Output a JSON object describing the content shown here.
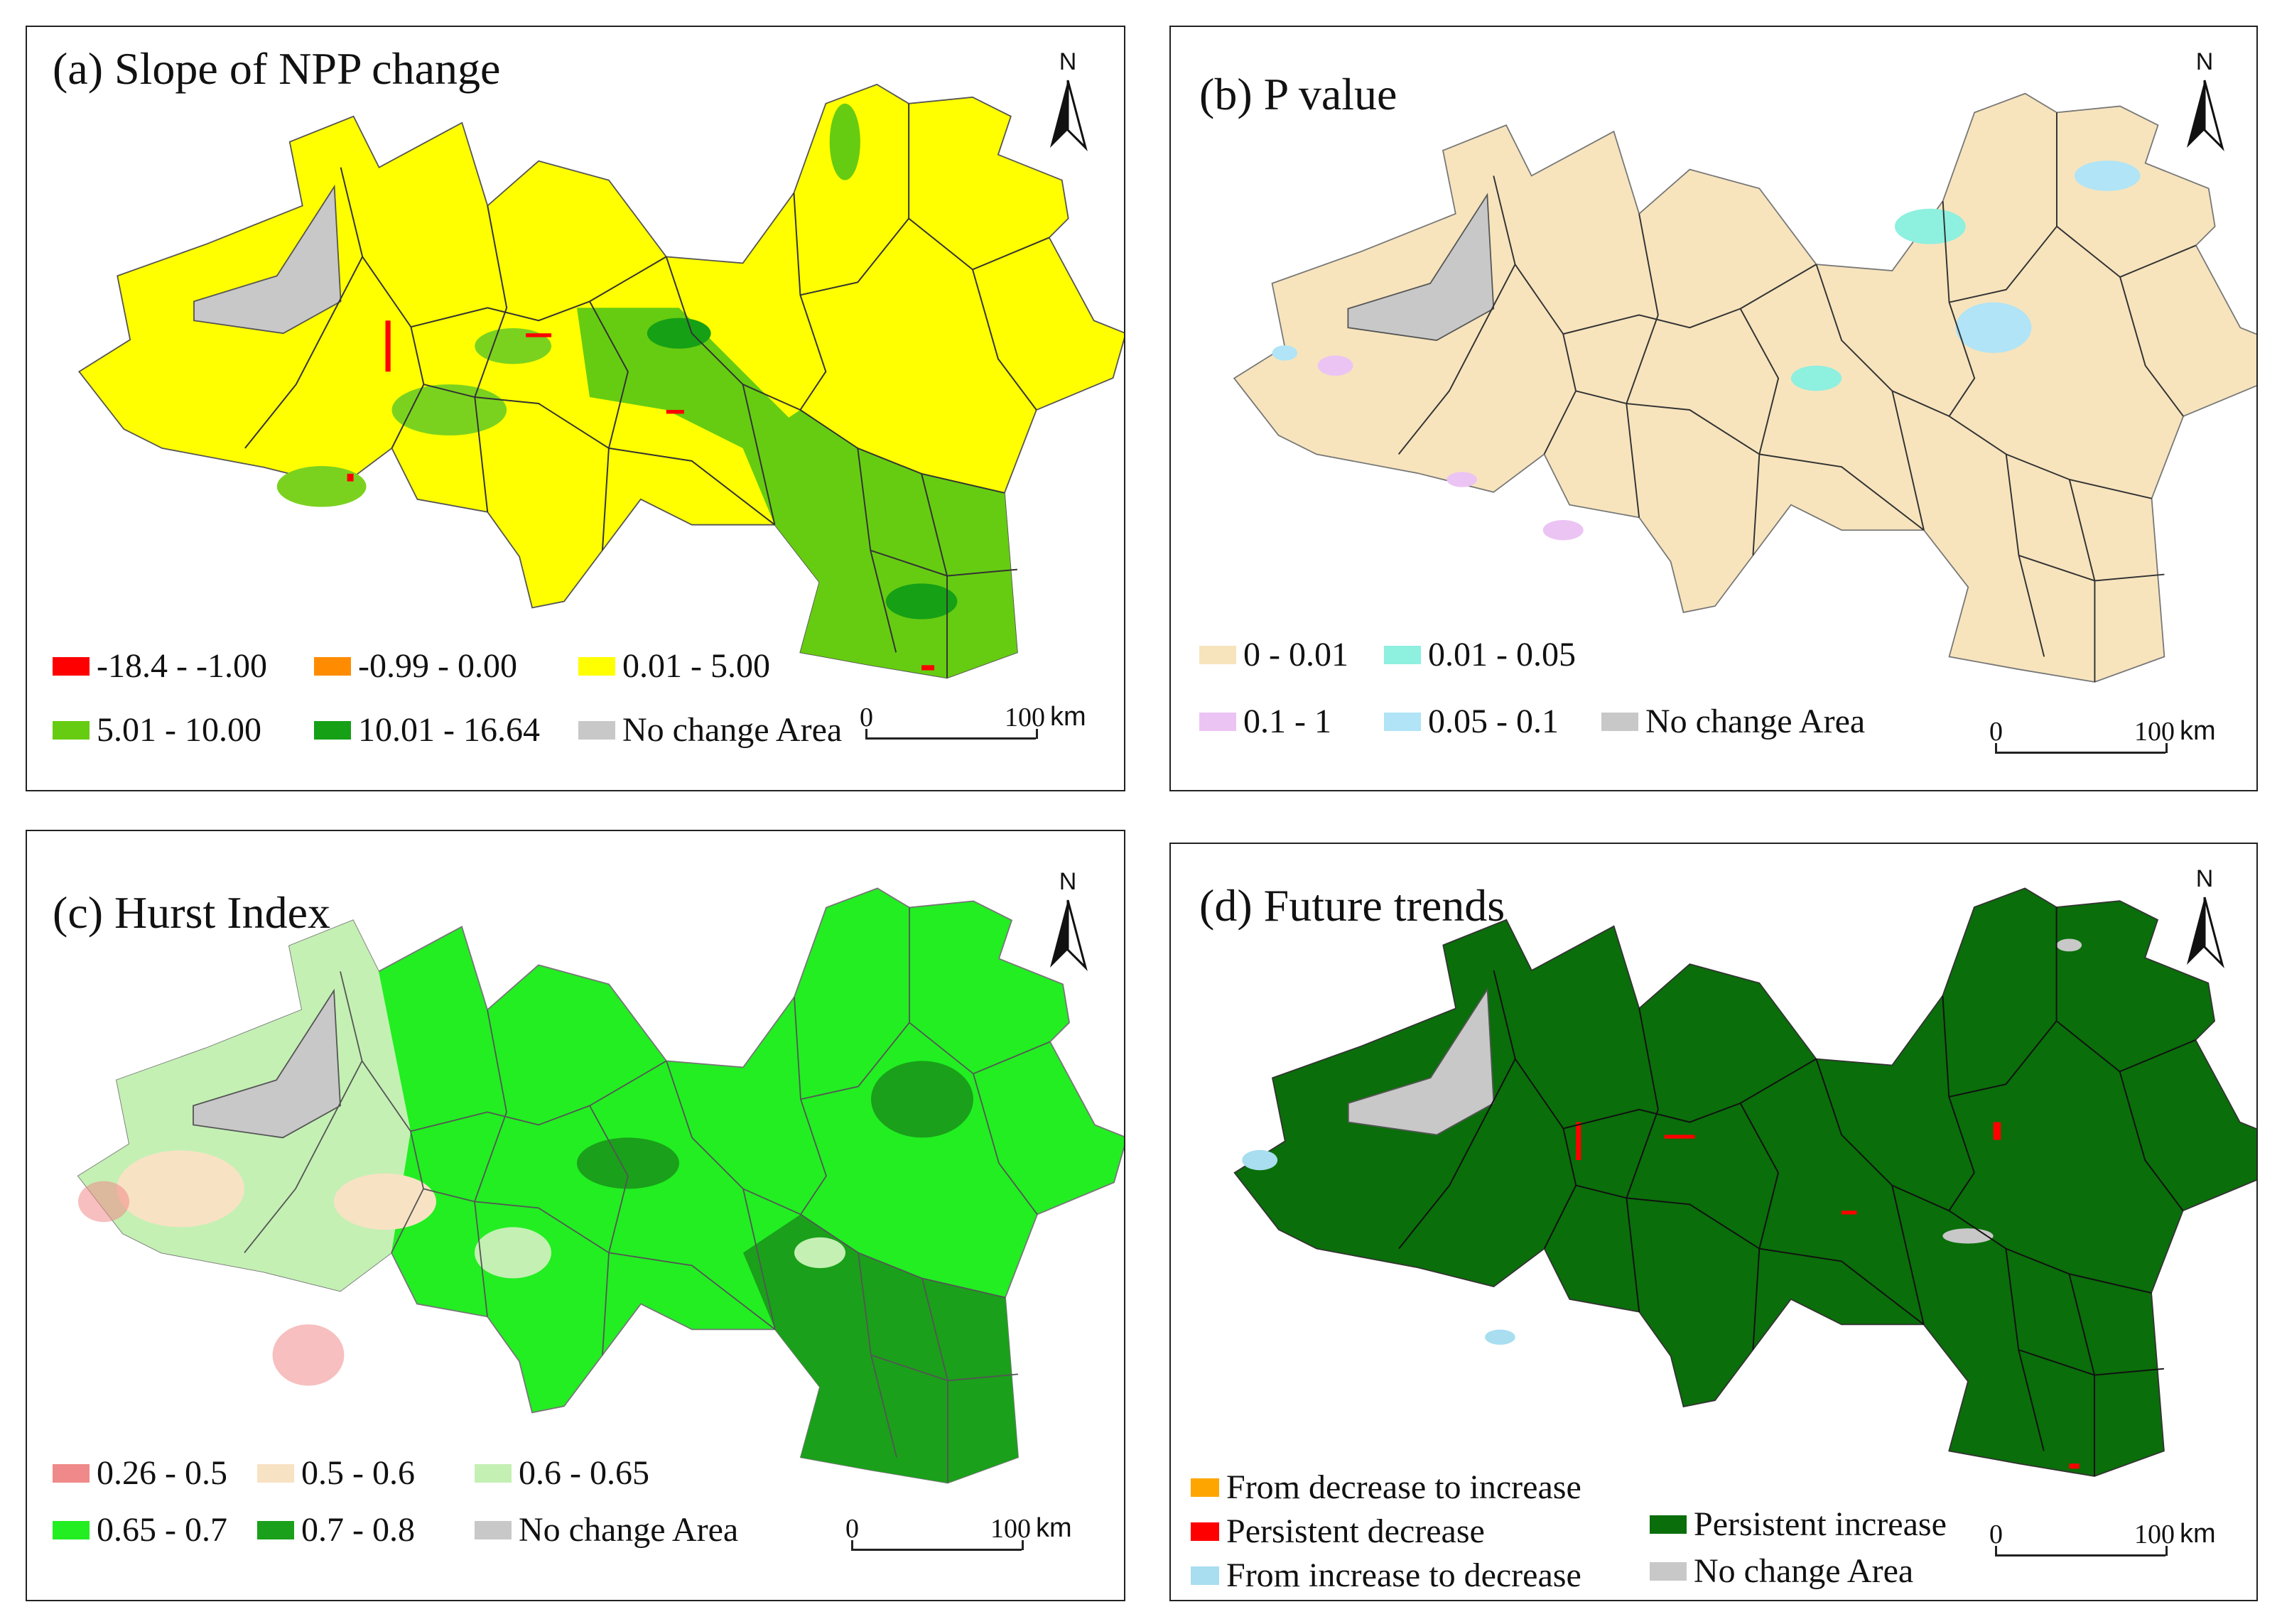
{
  "panels": {
    "a": {
      "title": "(a) Slope of NPP change",
      "north": "N",
      "legend": [
        {
          "label": "-18.4 - -1.00",
          "color": "#ff0000"
        },
        {
          "label": "-0.99 - 0.00",
          "color": "#ff8c00"
        },
        {
          "label": "0.01 - 5.00",
          "color": "#ffff00"
        },
        {
          "label": "5.01 - 10.00",
          "color": "#66cc11"
        },
        {
          "label": "10.01 - 16.64",
          "color": "#16a016"
        },
        {
          "label": "No change Area",
          "color": "#c8c8c8"
        }
      ],
      "scale": {
        "start": "0",
        "end": "100",
        "unit": "km"
      }
    },
    "b": {
      "title": "(b) P value",
      "north": "N",
      "legend": [
        {
          "label": "0 - 0.01",
          "color": "#f7e4bd"
        },
        {
          "label": "0.01 - 0.05",
          "color": "#8ef0df"
        },
        {
          "label": "0.1 - 1",
          "color": "#ecc4f4"
        },
        {
          "label": "0.05 - 0.1",
          "color": "#b0e4f6"
        },
        {
          "label": "No change Area",
          "color": "#c8c8c8"
        }
      ],
      "scale": {
        "start": "0",
        "end": "100",
        "unit": "km"
      }
    },
    "c": {
      "title": "(c) Hurst Index",
      "north": "N",
      "legend": [
        {
          "label": "0.26 - 0.5",
          "color": "#f08a8a"
        },
        {
          "label": "0.5 - 0.6",
          "color": "#f8e2c4"
        },
        {
          "label": "0.6 - 0.65",
          "color": "#c4f0b4"
        },
        {
          "label": "0.65 - 0.7",
          "color": "#22ee22"
        },
        {
          "label": "0.7 - 0.8",
          "color": "#1aa01a"
        },
        {
          "label": "No change Area",
          "color": "#c8c8c8"
        }
      ],
      "scale": {
        "start": "0",
        "end": "100",
        "unit": "km"
      }
    },
    "d": {
      "title": "(d) Future trends",
      "north": "N",
      "legend": [
        {
          "label": "From  decrease to  increase",
          "color": "#ffa500"
        },
        {
          "label": "Persistent  decrease",
          "color": "#ff0000"
        },
        {
          "label": "From  increase to  decrease",
          "color": "#a8def0"
        },
        {
          "label": "Persistent  increase",
          "color": "#0a6e0a"
        },
        {
          "label": "No change Area",
          "color": "#c8c8c8"
        }
      ],
      "scale": {
        "start": "0",
        "end": "100",
        "unit": "km"
      }
    }
  },
  "map": {
    "boundary_color": "#333333",
    "water_color": "#c8c8c8"
  }
}
